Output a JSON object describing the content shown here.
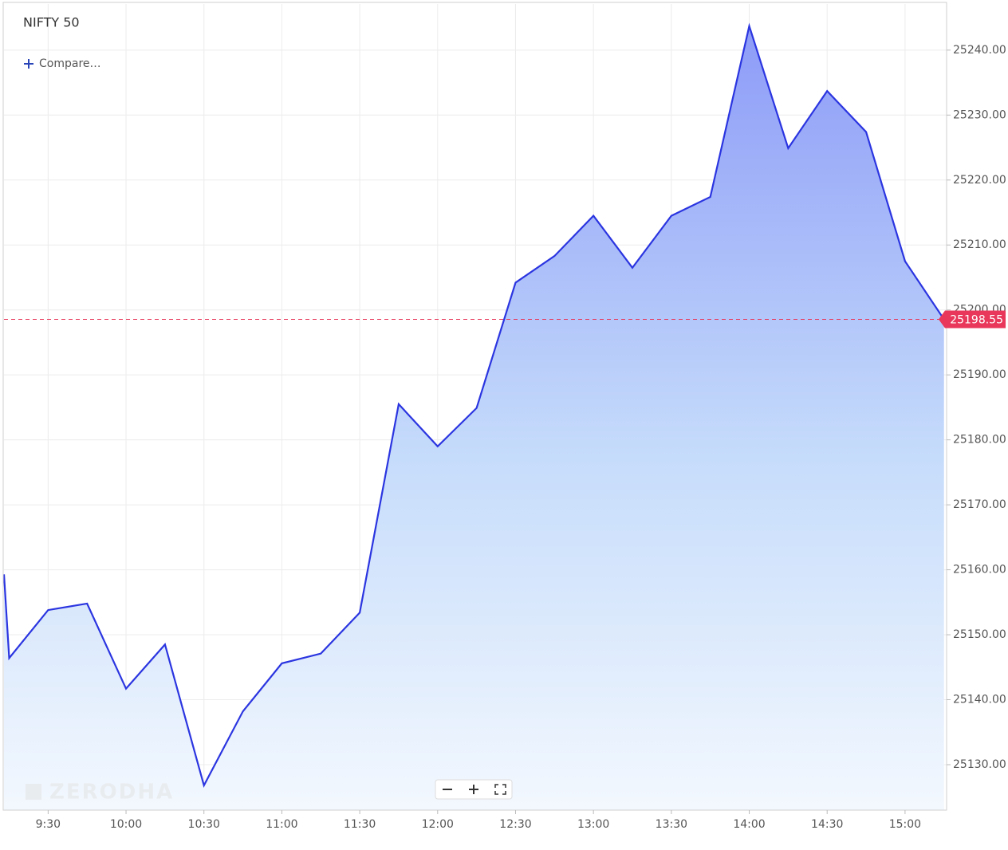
{
  "chart_data": {
    "type": "line",
    "title": "NIFTY 50",
    "compare": "Compare…",
    "watermark": "ZERODHA",
    "x": [
      553,
      555,
      570,
      585,
      600,
      615,
      630,
      645,
      660,
      675,
      690,
      705,
      720,
      735,
      750,
      765,
      780,
      795,
      810,
      825,
      840,
      855,
      870,
      885,
      900,
      915
    ],
    "values": [
      25159.3,
      25146.4,
      25153.8,
      25154.8,
      25141.7,
      25148.5,
      25126.8,
      25138.2,
      25145.6,
      25147.1,
      25153.4,
      25185.5,
      25179.0,
      25184.9,
      25204.2,
      25208.3,
      25214.5,
      25206.5,
      25214.5,
      25217.4,
      25243.7,
      25224.9,
      25233.7,
      25227.4,
      25207.5,
      25198.55
    ],
    "color": "#2b35e0",
    "marker_color": "#e8375a",
    "xlim": [
      553,
      916
    ],
    "xticks": [
      {
        "value": 570,
        "label": "9:30"
      },
      {
        "value": 600,
        "label": "10:00"
      },
      {
        "value": 630,
        "label": "10:30"
      },
      {
        "value": 660,
        "label": "11:00"
      },
      {
        "value": 690,
        "label": "11:30"
      },
      {
        "value": 720,
        "label": "12:00"
      },
      {
        "value": 750,
        "label": "12:30"
      },
      {
        "value": 780,
        "label": "13:00"
      },
      {
        "value": 810,
        "label": "13:30"
      },
      {
        "value": 840,
        "label": "14:00"
      },
      {
        "value": 870,
        "label": "14:30"
      },
      {
        "value": 900,
        "label": "15:00"
      }
    ],
    "ylim": [
      25123,
      25247.1
    ],
    "yticks": [
      {
        "value": 25130,
        "label": "25130.00"
      },
      {
        "value": 25140,
        "label": "25140.00"
      },
      {
        "value": 25150,
        "label": "25150.00"
      },
      {
        "value": 25160,
        "label": "25160.00"
      },
      {
        "value": 25170,
        "label": "25170.00"
      },
      {
        "value": 25180,
        "label": "25180.00"
      },
      {
        "value": 25190,
        "label": "25190.00"
      },
      {
        "value": 25200,
        "label": "25200.00"
      },
      {
        "value": 25210,
        "label": "25210.00"
      },
      {
        "value": 25220,
        "label": "25220.00"
      },
      {
        "value": 25230,
        "label": "25230.00"
      },
      {
        "value": 25240,
        "label": "25240.00"
      }
    ],
    "grid": true
  }
}
